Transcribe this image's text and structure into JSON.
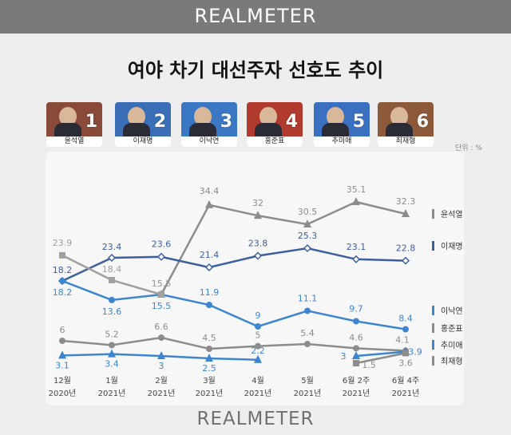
{
  "brand": "REALMETER",
  "title": "여야 차기 대선주자 선호도 추이",
  "unit": "단위 : %",
  "candidates": [
    {
      "num": "1",
      "name": "윤석열",
      "bg": "#8a4a3a"
    },
    {
      "num": "2",
      "name": "이재명",
      "bg": "#3a6fb8"
    },
    {
      "num": "3",
      "name": "이낙연",
      "bg": "#3a78c4"
    },
    {
      "num": "4",
      "name": "홍준표",
      "bg": "#b03a2e"
    },
    {
      "num": "5",
      "name": "추미애",
      "bg": "#3a70c0"
    },
    {
      "num": "6",
      "name": "최재형",
      "bg": "#8c5a3a"
    }
  ],
  "chart_data": {
    "type": "line",
    "title": "여야 차기 대선주자 선호도 추이",
    "unit": "단위 : %",
    "categories": [
      {
        "month": "12월",
        "year": "2020년"
      },
      {
        "month": "1월",
        "year": "2021년"
      },
      {
        "month": "2월",
        "year": "2021년"
      },
      {
        "month": "3월",
        "year": "2021년"
      },
      {
        "month": "4월",
        "year": "2021년"
      },
      {
        "month": "5월",
        "year": "2021년"
      },
      {
        "month": "6월 2주",
        "year": "2021년"
      },
      {
        "month": "6월 4주",
        "year": "2021년"
      }
    ],
    "series": [
      {
        "name": "윤석열",
        "color": "#8c8c8c",
        "marker": "triangle",
        "values": [
          null,
          null,
          15.5,
          34.4,
          32.0,
          30.5,
          35.1,
          32.3
        ]
      },
      {
        "name": "이재명",
        "color": "#3d5f9e",
        "marker": "diamond",
        "values": [
          18.2,
          23.4,
          23.6,
          21.4,
          23.8,
          25.3,
          23.1,
          22.8
        ]
      },
      {
        "name": "이낙연",
        "color": "#3d86cf",
        "marker": "circle",
        "values": [
          18.2,
          13.6,
          15.5,
          11.9,
          9.0,
          11.1,
          9.7,
          8.4
        ]
      },
      {
        "name": "홍준표",
        "color": "#8c8c8c",
        "marker": "circle",
        "values": [
          6.0,
          5.2,
          6.6,
          4.5,
          5.0,
          5.4,
          4.6,
          4.1
        ]
      },
      {
        "name": "추미애",
        "color": "#3d86cf",
        "marker": "triangle",
        "values": [
          3.1,
          3.4,
          3.0,
          2.5,
          2.2,
          null,
          3.0,
          3.9
        ]
      },
      {
        "name": "최재형",
        "color": "#8c8c8c",
        "marker": "square",
        "values": [
          null,
          null,
          null,
          null,
          null,
          null,
          1.5,
          3.6
        ]
      },
      {
        "name": "",
        "color": "#a0a0a0",
        "marker": "square",
        "values": [
          23.9,
          18.4,
          15.5,
          null,
          null,
          null,
          null,
          null
        ]
      }
    ]
  }
}
